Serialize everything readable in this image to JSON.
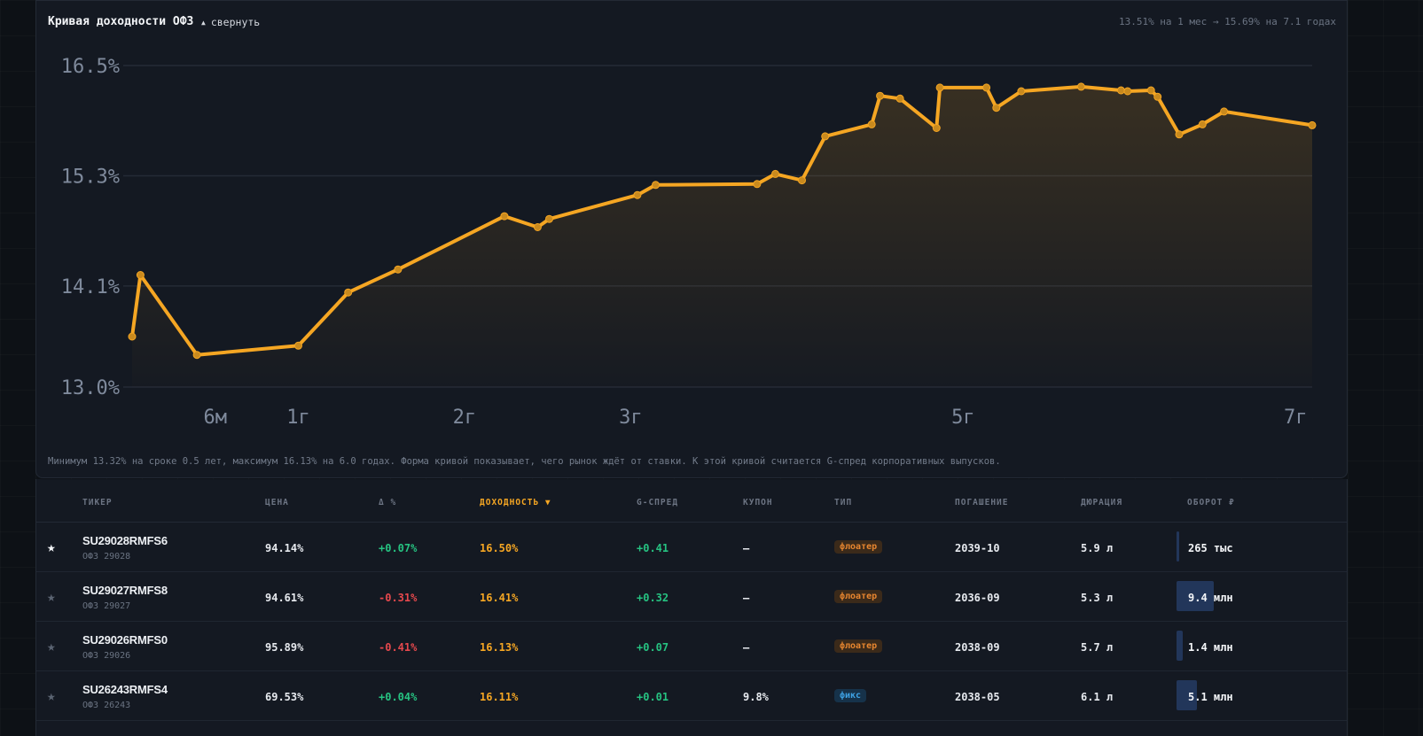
{
  "header": {
    "title": "Кривая доходности ОФЗ",
    "collapse_label": "свернуть",
    "summary": "13.51% на 1 мес → 15.69% на 7.1 годах"
  },
  "chart_data": {
    "type": "line",
    "xlabel": "",
    "ylabel": "",
    "ylim": [
      13.0,
      16.5
    ],
    "xlim": [
      0,
      7.1
    ],
    "yticks": [
      13.0,
      14.1,
      15.3,
      16.5
    ],
    "ytick_labels": [
      "13.0%",
      "14.1%",
      "15.3%",
      "16.5%"
    ],
    "xticks": [
      0.5,
      1,
      2,
      3,
      5,
      7
    ],
    "xtick_labels": [
      "6м",
      "1г",
      "2г",
      "3г",
      "5г",
      "7г"
    ],
    "grid": true,
    "color": "#f5a623",
    "x": [
      0.0,
      0.05,
      0.39,
      1.0,
      1.3,
      1.6,
      2.24,
      2.44,
      2.51,
      3.04,
      3.15,
      3.76,
      3.87,
      4.03,
      4.17,
      4.45,
      4.5,
      4.62,
      4.84,
      4.86,
      5.14,
      5.2,
      5.35,
      5.71,
      5.95,
      5.99,
      6.13,
      6.17,
      6.3,
      6.44,
      6.57,
      7.1
    ],
    "y": [
      13.55,
      14.22,
      13.35,
      13.45,
      14.03,
      14.28,
      14.86,
      14.74,
      14.83,
      15.09,
      15.2,
      15.21,
      15.32,
      15.25,
      15.73,
      15.86,
      16.17,
      16.14,
      15.82,
      16.26,
      16.26,
      16.04,
      16.22,
      16.27,
      16.23,
      16.22,
      16.23,
      16.16,
      15.75,
      15.86,
      16.0,
      15.85
    ]
  },
  "note": "Минимум 13.32% на сроке 0.5 лет, максимум 16.13% на 6.0 годах. Форма кривой показывает, чего рынок ждёт от ставки. К этой кривой считается G-спред корпоративных выпусков.",
  "table": {
    "headers": [
      "ТИКЕР",
      "ЦЕНА",
      "Δ %",
      "ДОХОДНОСТЬ ▼",
      "G-СПРЕД",
      "КУПОН",
      "ТИП",
      "ПОГАШЕНИЕ",
      "ДЮРАЦИЯ",
      "ОБОРОТ ₽"
    ],
    "rows": [
      {
        "star": "★",
        "starred": true,
        "ticker": "SU29028RMFS6",
        "name": "ОФЗ 29028",
        "price": "94.14%",
        "change": "+0.07%",
        "change_sign": "pos",
        "yield": "16.50%",
        "spread": "+0.41",
        "coupon": "—",
        "type": "флоатер",
        "type_kind": "float",
        "maturity": "2039-10",
        "duration": "5.9 л",
        "volume": "265 тыс",
        "volume_share": 0.03
      },
      {
        "star": "★",
        "starred": false,
        "ticker": "SU29027RMFS8",
        "name": "ОФЗ 29027",
        "price": "94.61%",
        "change": "-0.31%",
        "change_sign": "neg",
        "yield": "16.41%",
        "spread": "+0.32",
        "coupon": "—",
        "type": "флоатер",
        "type_kind": "float",
        "maturity": "2036-09",
        "duration": "5.3 л",
        "volume": "9.4 млн",
        "volume_share": 1.0
      },
      {
        "star": "★",
        "starred": false,
        "ticker": "SU29026RMFS0",
        "name": "ОФЗ 29026",
        "price": "95.89%",
        "change": "-0.41%",
        "change_sign": "neg",
        "yield": "16.13%",
        "spread": "+0.07",
        "coupon": "—",
        "type": "флоатер",
        "type_kind": "float",
        "maturity": "2038-09",
        "duration": "5.7 л",
        "volume": "1.4 млн",
        "volume_share": 0.15
      },
      {
        "star": "★",
        "starred": false,
        "ticker": "SU26243RMFS4",
        "name": "ОФЗ 26243",
        "price": "69.53%",
        "change": "+0.04%",
        "change_sign": "pos",
        "yield": "16.11%",
        "spread": "+0.01",
        "coupon": "9.8%",
        "type": "фикс",
        "type_kind": "fix",
        "maturity": "2038-05",
        "duration": "6.1 л",
        "volume": "5.1 млн",
        "volume_share": 0.54
      }
    ]
  }
}
